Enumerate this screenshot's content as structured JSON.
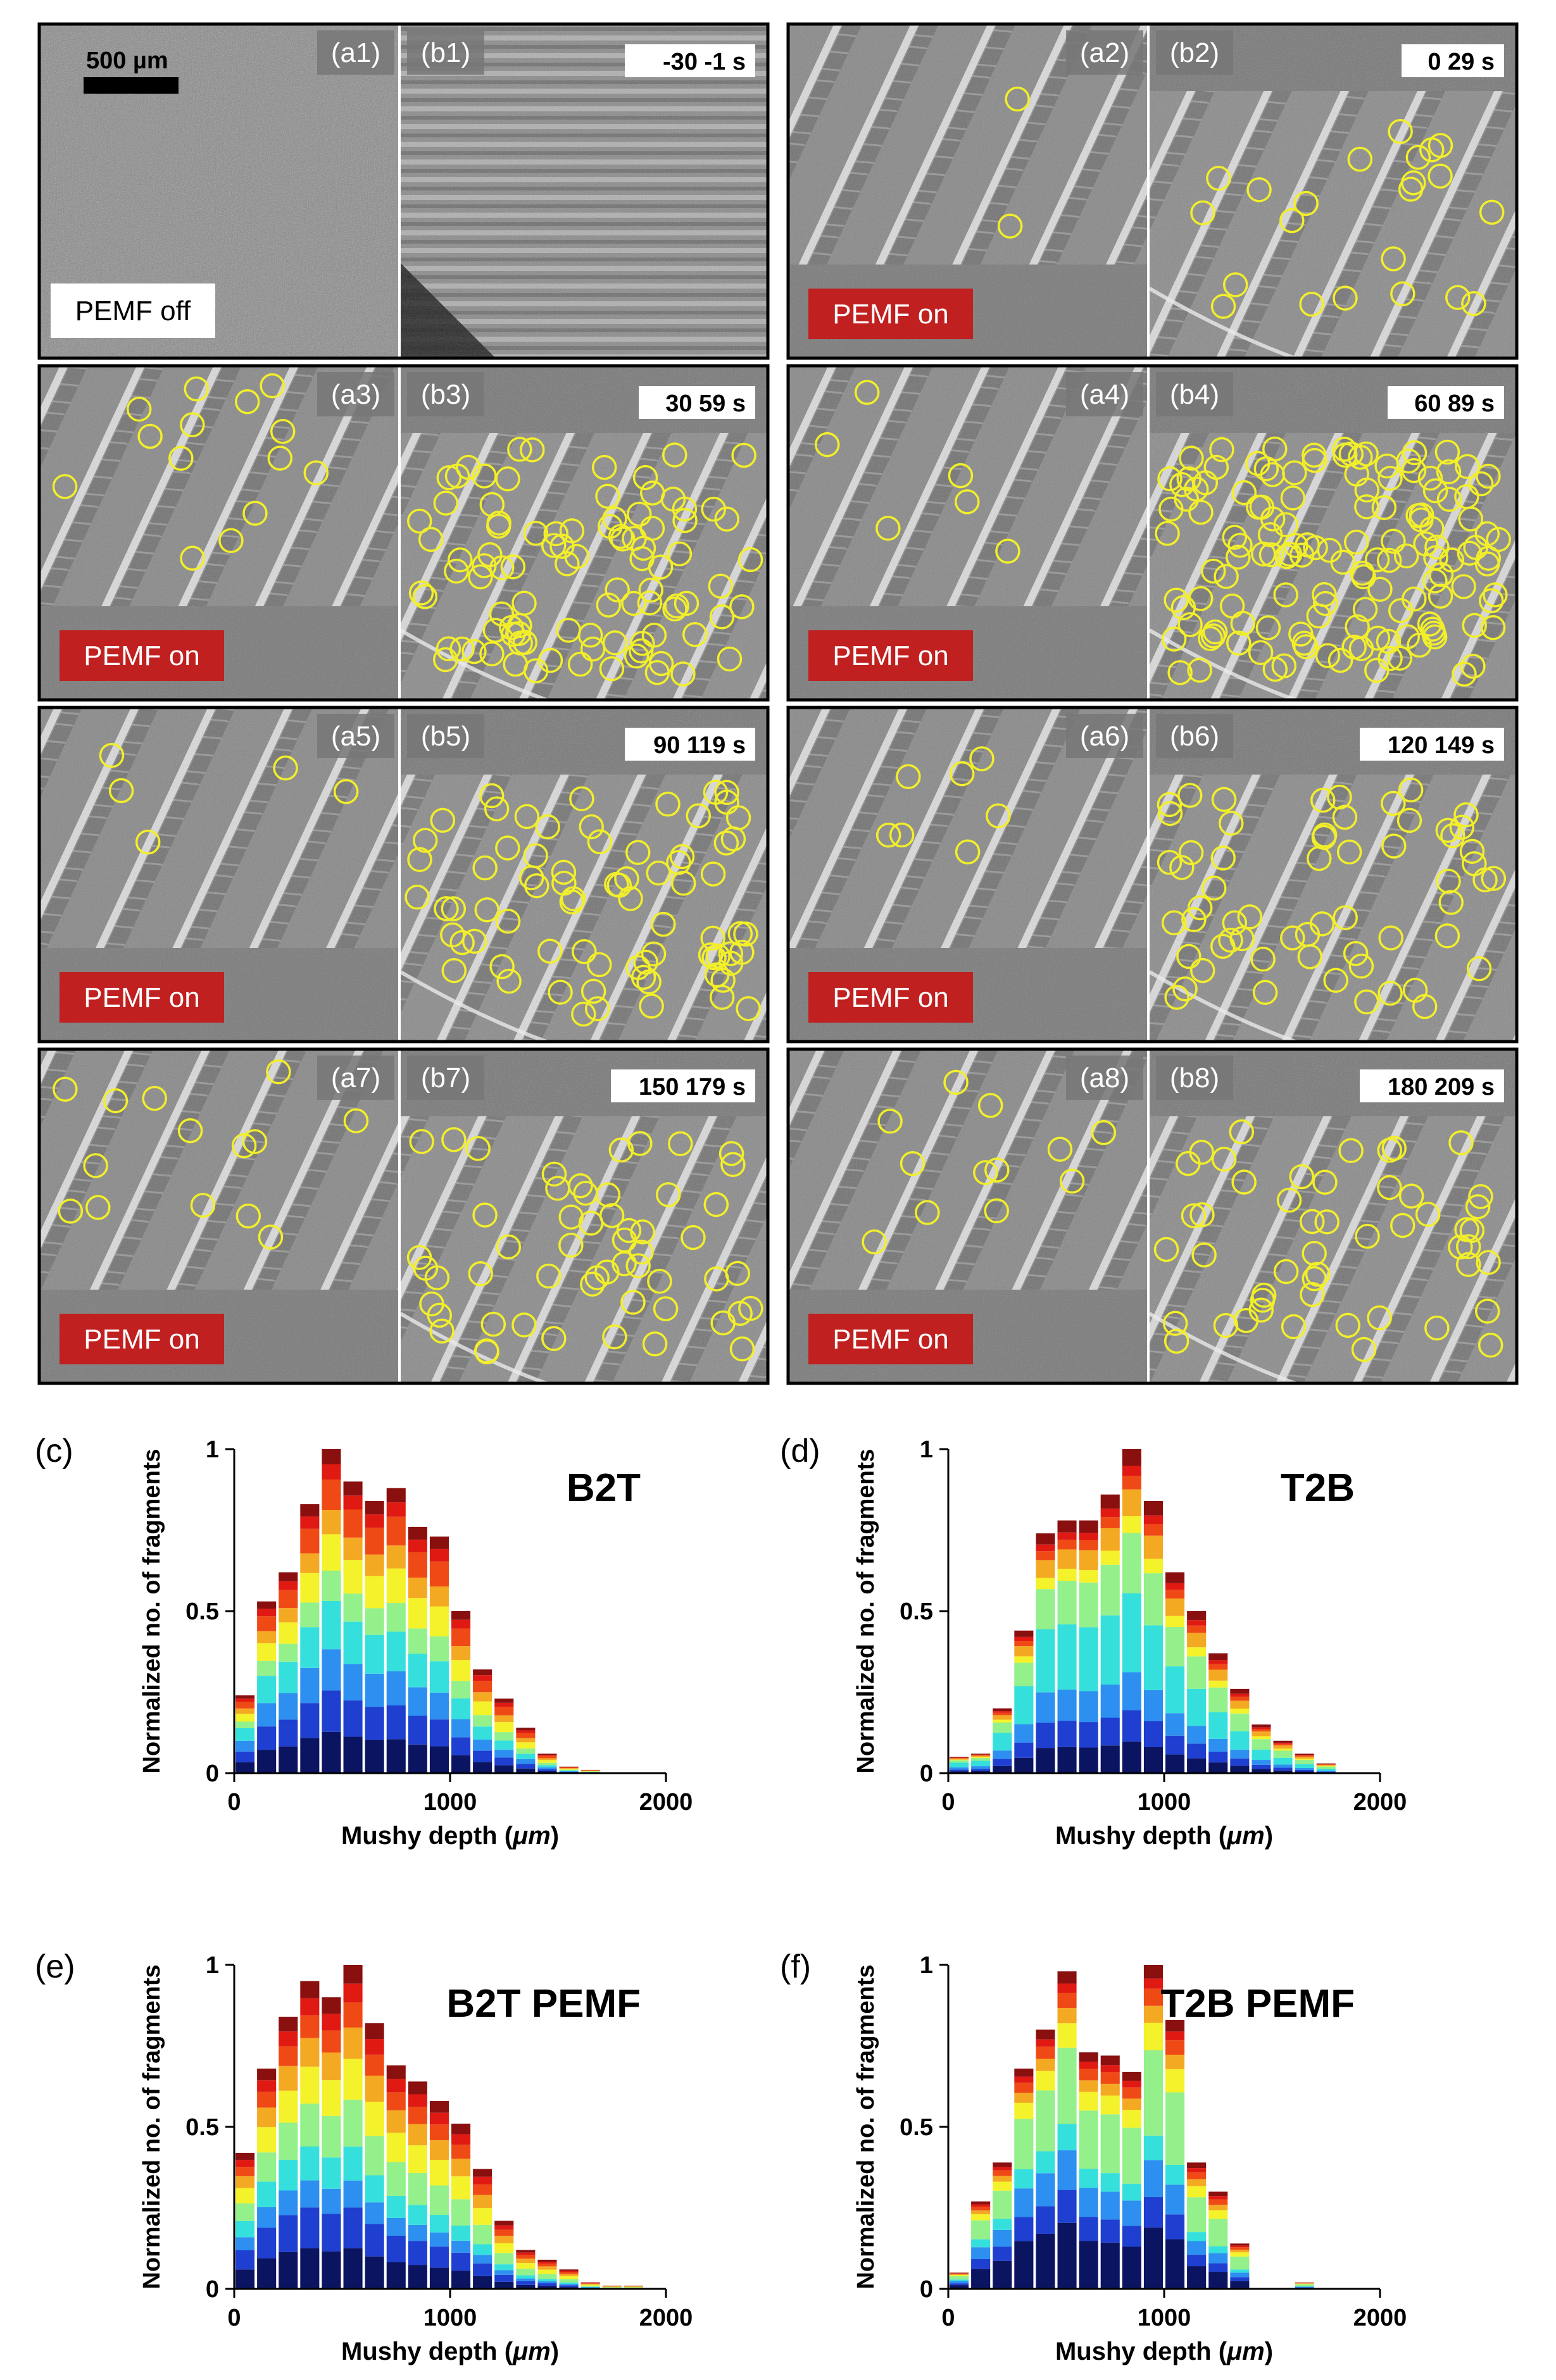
{
  "figure": {
    "scale_bar_label": "500 µm",
    "pemf_off_label": "PEMF off",
    "pemf_on_label": "PEMF on"
  },
  "colors": {
    "highlight_circle": "#f2ef2a",
    "pemf_on_badge": "#c0201f",
    "panel_label_bg": "#777777",
    "stack": [
      "#0b1460",
      "#1e3fd0",
      "#2d8ff0",
      "#35e0dc",
      "#93f08a",
      "#f4f22a",
      "#f4a923",
      "#ef4a16",
      "#e01a12",
      "#8a1010"
    ]
  },
  "panels": [
    {
      "a": "(a1)",
      "b": "(b1)",
      "time": "-30 -1 s",
      "pemf": "off",
      "a_circles": 0,
      "b_circles": 0
    },
    {
      "a": "(a2)",
      "b": "(b2)",
      "time": "0 29 s",
      "pemf": "on",
      "a_circles": 2,
      "b_circles": 22
    },
    {
      "a": "(a3)",
      "b": "(b3)",
      "time": "30 59 s",
      "pemf": "on",
      "a_circles": 14,
      "b_circles": 95
    },
    {
      "a": "(a4)",
      "b": "(b4)",
      "time": "60 89 s",
      "pemf": "on",
      "a_circles": 6,
      "b_circles": 140
    },
    {
      "a": "(a5)",
      "b": "(b5)",
      "time": "90 119 s",
      "pemf": "on",
      "a_circles": 5,
      "b_circles": 75
    },
    {
      "a": "(a6)",
      "b": "(b6)",
      "time": "120 149 s",
      "pemf": "on",
      "a_circles": 7,
      "b_circles": 60
    },
    {
      "a": "(a7)",
      "b": "(b7)",
      "time": "150 179 s",
      "pemf": "on",
      "a_circles": 14,
      "b_circles": 55
    },
    {
      "a": "(a8)",
      "b": "(b8)",
      "time": "180 209 s",
      "pemf": "on",
      "a_circles": 12,
      "b_circles": 50
    }
  ],
  "chart_data": [
    {
      "panel": "(c)",
      "type": "bar",
      "stacked": true,
      "title": "B2T",
      "xlabel": "Mushy depth (",
      "xlabel_unit": "μm",
      "xlabel_end": ")",
      "ylabel": "Normalized no. of fragments",
      "xlim": [
        0,
        2000
      ],
      "ylim": [
        0,
        1
      ],
      "xticks": [
        0,
        1000,
        2000
      ],
      "yticks": [
        0,
        0.5,
        1
      ],
      "bin_width": 100,
      "x": [
        50,
        150,
        250,
        350,
        450,
        550,
        650,
        750,
        850,
        950,
        1050,
        1150,
        1250,
        1350,
        1450,
        1550,
        1650,
        1750,
        1850,
        1950
      ],
      "totals": [
        0.24,
        0.53,
        0.62,
        0.83,
        1.0,
        0.9,
        0.84,
        0.88,
        0.76,
        0.73,
        0.5,
        0.32,
        0.23,
        0.14,
        0.06,
        0.02,
        0.01,
        0.0,
        0.0,
        0.0
      ]
    },
    {
      "panel": "(d)",
      "type": "bar",
      "stacked": true,
      "title": "T2B",
      "xlabel": "Mushy depth (",
      "xlabel_unit": "μm",
      "xlabel_end": ")",
      "ylabel": "Normalized no. of fragments",
      "xlim": [
        0,
        2000
      ],
      "ylim": [
        0,
        1
      ],
      "xticks": [
        0,
        1000,
        2000
      ],
      "yticks": [
        0,
        0.5,
        1
      ],
      "bin_width": 100,
      "x": [
        50,
        150,
        250,
        350,
        450,
        550,
        650,
        750,
        850,
        950,
        1050,
        1150,
        1250,
        1350,
        1450,
        1550,
        1650,
        1750,
        1850,
        1950
      ],
      "totals": [
        0.05,
        0.06,
        0.2,
        0.44,
        0.74,
        0.78,
        0.78,
        0.86,
        1.0,
        0.84,
        0.62,
        0.5,
        0.37,
        0.26,
        0.15,
        0.1,
        0.06,
        0.03,
        0.0,
        0.0
      ]
    },
    {
      "panel": "(e)",
      "type": "bar",
      "stacked": true,
      "title": "B2T PEMF",
      "xlabel": "Mushy depth (",
      "xlabel_unit": "μm",
      "xlabel_end": ")",
      "ylabel": "Normalized no. of fragments",
      "xlim": [
        0,
        2000
      ],
      "ylim": [
        0,
        1
      ],
      "xticks": [
        0,
        1000,
        2000
      ],
      "yticks": [
        0,
        0.5,
        1
      ],
      "bin_width": 100,
      "x": [
        50,
        150,
        250,
        350,
        450,
        550,
        650,
        750,
        850,
        950,
        1050,
        1150,
        1250,
        1350,
        1450,
        1550,
        1650,
        1750,
        1850,
        1950
      ],
      "totals": [
        0.42,
        0.68,
        0.84,
        0.95,
        0.9,
        1.0,
        0.82,
        0.69,
        0.64,
        0.58,
        0.51,
        0.37,
        0.21,
        0.12,
        0.09,
        0.06,
        0.02,
        0.01,
        0.01,
        0.0
      ]
    },
    {
      "panel": "(f)",
      "type": "bar",
      "stacked": true,
      "title": "T2B PEMF",
      "xlabel": "Mushy depth (",
      "xlabel_unit": "μm",
      "xlabel_end": ")",
      "ylabel": "Normalized no. of fragments",
      "xlim": [
        0,
        2000
      ],
      "ylim": [
        0,
        1
      ],
      "xticks": [
        0,
        1000,
        2000
      ],
      "yticks": [
        0,
        0.5,
        1
      ],
      "bin_width": 100,
      "x": [
        50,
        150,
        250,
        350,
        450,
        550,
        650,
        750,
        850,
        950,
        1050,
        1150,
        1250,
        1350,
        1450,
        1550,
        1650,
        1750,
        1850,
        1950
      ],
      "totals": [
        0.05,
        0.27,
        0.39,
        0.68,
        0.8,
        0.98,
        0.73,
        0.72,
        0.67,
        1.0,
        0.83,
        0.39,
        0.3,
        0.14,
        0.0,
        0.0,
        0.02,
        0.0,
        0.0,
        0.0
      ]
    }
  ]
}
